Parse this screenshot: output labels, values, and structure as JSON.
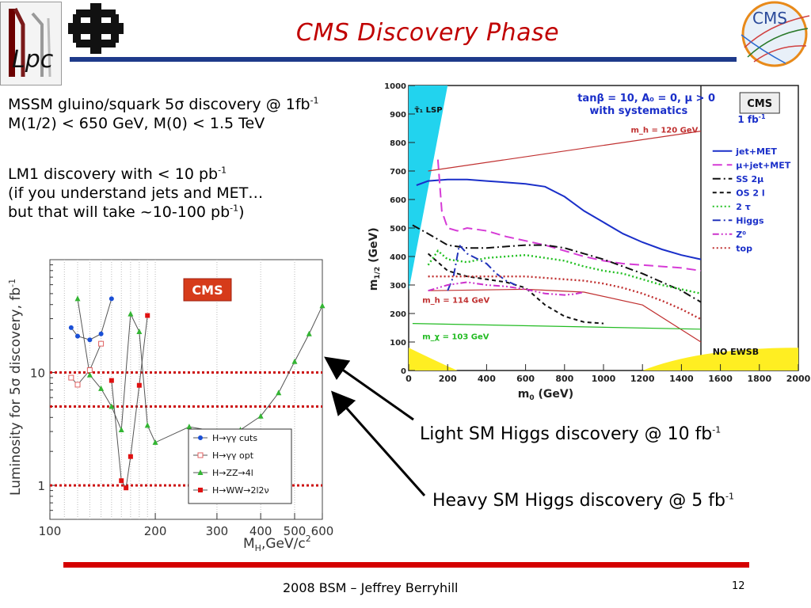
{
  "slide": {
    "title": "CMS Discovery Phase",
    "footer": "2008 BSM – Jeffrey Berryhill",
    "page_number": "12",
    "logos": {
      "lpc_text": "Lpc",
      "cms_text": "CMS"
    },
    "colors": {
      "title": "#c00000",
      "top_rule": "#1e3a8a",
      "bottom_rule": "#d40000"
    }
  },
  "notes": {
    "line1_pre": "MSSM gluino/squark 5",
    "line1_sym": "σ",
    "line1_post": " discovery @ 1fb",
    "line1_sup": "-1",
    "line2": "M(1/2) < 650 GeV, M(0) < 1.5 TeV",
    "line3": "LM1 discovery with < 10 pb",
    "line3_sup": "-1",
    "line4": "(if you understand jets and MET…",
    "line5_pre": "but that will take ~10-100 pb",
    "line5_sup": "-1",
    "line5_post": ")"
  },
  "annotations": {
    "light_text": "Light SM Higgs discovery @ 10 fb",
    "light_sup": "-1",
    "heavy_text": "Heavy SM Higgs discovery @ 5 fb",
    "heavy_sup": "-1"
  },
  "chart_data": [
    {
      "type": "line",
      "ylabel": "Luminosity for 5σ discovery, fb",
      "ylabel_sup": "-1",
      "xlabel": "M",
      "xlabel_sub": "H",
      "xlabel_rest": ",GeV/c",
      "xlabel_sup": "2",
      "xscale": "log",
      "yscale": "log",
      "xlim": [
        100,
        600
      ],
      "ylim": [
        0.5,
        100
      ],
      "x_ticks": [
        "100",
        "200",
        "300",
        "400",
        "500",
        "600"
      ],
      "x_tick_values": [
        100,
        200,
        300,
        400,
        500,
        600
      ],
      "y_ticks": [
        "1",
        "10"
      ],
      "y_tick_values": [
        1,
        10
      ],
      "badge": "CMS",
      "legend_position": "bottom-right",
      "series": [
        {
          "name": "H→γγ cuts",
          "color": "#1a4fd6",
          "marker": "circle",
          "x": [
            115,
            120,
            130,
            140,
            150
          ],
          "y": [
            25,
            21,
            19.5,
            22,
            45
          ]
        },
        {
          "name": "H→γγ opt",
          "color": "#e06060",
          "marker": "open-square",
          "x": [
            115,
            120,
            130,
            140
          ],
          "y": [
            9,
            7.8,
            10.5,
            18
          ]
        },
        {
          "name": "H→ZZ→4l",
          "color": "#33b533",
          "marker": "triangle",
          "x": [
            120,
            130,
            140,
            150,
            160,
            170,
            180,
            190,
            200,
            250,
            300,
            350,
            400,
            450,
            500,
            550,
            600
          ],
          "y": [
            45,
            9.5,
            7.2,
            5.0,
            3.1,
            33,
            23,
            3.4,
            2.4,
            3.3,
            3.0,
            3.1,
            4.1,
            6.6,
            12.5,
            22,
            39
          ]
        },
        {
          "name": "H→WW→2l2ν",
          "color": "#e01010",
          "marker": "square",
          "x": [
            150,
            160,
            165,
            170,
            180,
            190
          ],
          "y": [
            8.5,
            1.1,
            0.95,
            1.8,
            7.7,
            32
          ]
        }
      ],
      "reference_lines": [
        10,
        5,
        1
      ]
    },
    {
      "type": "line",
      "xlabel": "m",
      "xlabel_sub": "0",
      "xlabel_rest": " (GeV)",
      "ylabel": "m",
      "ylabel_sub": "1/2",
      "ylabel_rest": " (GeV)",
      "xlim": [
        0,
        2000
      ],
      "ylim": [
        0,
        1000
      ],
      "x_ticks": [
        "0",
        "200",
        "400",
        "600",
        "800",
        "1000",
        "1200",
        "1400",
        "1600",
        "1800",
        "2000"
      ],
      "x_tick_values": [
        0,
        200,
        400,
        600,
        800,
        1000,
        1200,
        1400,
        1600,
        1800,
        2000
      ],
      "y_ticks": [
        "0",
        "100",
        "200",
        "300",
        "400",
        "500",
        "600",
        "700",
        "800",
        "900",
        "1000"
      ],
      "y_tick_values": [
        0,
        100,
        200,
        300,
        400,
        500,
        600,
        700,
        800,
        900,
        1000
      ],
      "header_line1": "tanβ = 10, A₀ = 0, μ > 0",
      "header_line2": "with systematics",
      "badge": "CMS",
      "lumi": "1 fb",
      "lumi_sup": "-1",
      "region_labels": {
        "lsp": "τ̃₁ LSP",
        "no_ewsb": "NO EWSB",
        "mh120": "m_h = 120 GeV",
        "mh114": "m_h = 114 GeV",
        "mchi103": "m_χ = 103 GeV"
      },
      "legend_position": "right",
      "series": [
        {
          "name": "jet+MET",
          "color": "#1a2fc9",
          "dash": "solid",
          "x": [
            40,
            100,
            200,
            300,
            400,
            500,
            600,
            700,
            800,
            900,
            1000,
            1100,
            1200,
            1300,
            1400,
            1500
          ],
          "y": [
            650,
            665,
            670,
            670,
            665,
            660,
            655,
            645,
            610,
            560,
            520,
            480,
            450,
            425,
            405,
            390
          ]
        },
        {
          "name": "μ+jet+MET",
          "color": "#d63bd6",
          "dash": "long",
          "x": [
            150,
            170,
            200,
            250,
            300,
            400,
            500,
            600,
            700,
            800,
            900,
            1000,
            1100,
            1200,
            1300,
            1400,
            1500
          ],
          "y": [
            740,
            560,
            500,
            490,
            500,
            490,
            470,
            455,
            440,
            420,
            400,
            385,
            375,
            370,
            365,
            360,
            350
          ]
        },
        {
          "name": "SS 2μ",
          "color": "#111111",
          "dash": "dashdot",
          "x": [
            20,
            100,
            200,
            300,
            400,
            500,
            600,
            700,
            800,
            900,
            1000,
            1100,
            1200,
            1300,
            1400,
            1500
          ],
          "y": [
            510,
            480,
            440,
            430,
            430,
            435,
            440,
            440,
            430,
            410,
            390,
            365,
            340,
            310,
            280,
            240
          ]
        },
        {
          "name": "OS 2 l",
          "color": "#111111",
          "dash": "dashed",
          "x": [
            100,
            200,
            300,
            400,
            500,
            600,
            700,
            800,
            900,
            1000
          ],
          "y": [
            410,
            350,
            330,
            320,
            310,
            290,
            230,
            190,
            170,
            165
          ]
        },
        {
          "name": "2 τ",
          "color": "#22c022",
          "dash": "dotted",
          "x": [
            100,
            150,
            200,
            300,
            400,
            500,
            600,
            700,
            800,
            900,
            1000,
            1100,
            1200,
            1300,
            1400,
            1500
          ],
          "y": [
            370,
            420,
            390,
            380,
            395,
            400,
            405,
            395,
            385,
            365,
            350,
            340,
            320,
            300,
            285,
            270
          ]
        },
        {
          "name": "Higgs",
          "color": "#2233bb",
          "dash": "dashdot",
          "x": [
            200,
            230,
            260,
            300,
            400,
            450,
            500,
            550
          ],
          "y": [
            280,
            330,
            440,
            410,
            375,
            340,
            315,
            300
          ]
        },
        {
          "name": "Z⁰",
          "color": "#cc33cc",
          "dash": "dashdotdot",
          "x": [
            100,
            200,
            300,
            400,
            500,
            600,
            700,
            800,
            850,
            900
          ],
          "y": [
            280,
            300,
            310,
            300,
            295,
            285,
            270,
            265,
            268,
            275
          ]
        },
        {
          "name": "top",
          "color": "#c03030",
          "dash": "dotted",
          "x": [
            100,
            200,
            300,
            400,
            500,
            600,
            700,
            800,
            900,
            1000,
            1100,
            1200,
            1300,
            1400,
            1500
          ],
          "y": [
            330,
            330,
            330,
            330,
            330,
            330,
            325,
            320,
            315,
            305,
            290,
            270,
            245,
            215,
            180
          ]
        }
      ]
    }
  ]
}
